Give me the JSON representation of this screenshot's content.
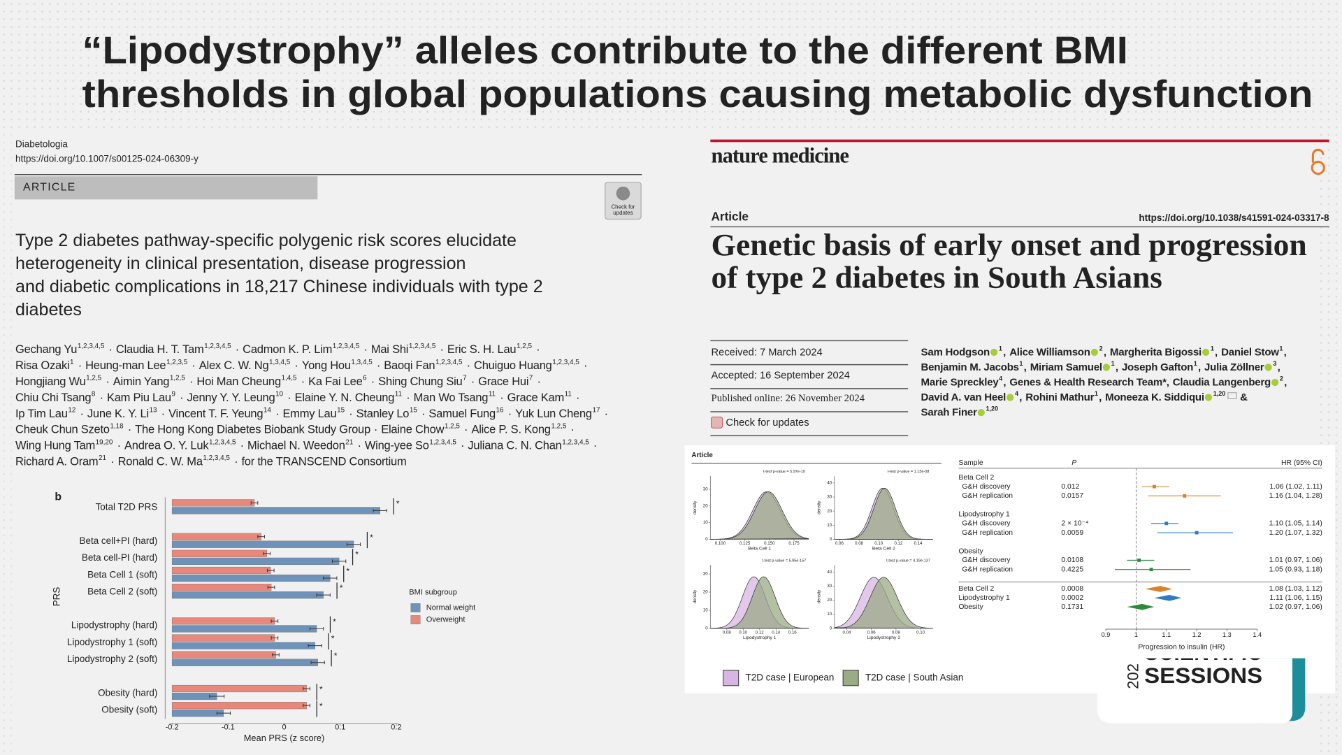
{
  "slide": {
    "title": [
      "“Lipodystrophy” alleles contribute to the different BMI",
      "thresholds in global populations causing metabolic dysfunction"
    ]
  },
  "left_paper": {
    "journal": "Diabetologia",
    "doi": "https://doi.org/10.1007/s00125-024-06309-y",
    "section": "ARTICLE",
    "badge": [
      "Check for",
      "updates"
    ],
    "title": [
      "Type 2 diabetes pathway-specific polygenic risk scores elucidate",
      "heterogeneity in clinical presentation, disease progression",
      "and diabetic complications in 18,217 Chinese individuals with type 2",
      "diabetes"
    ],
    "separator": "·",
    "authors": [
      [
        {
          "name": "Gechang Yu",
          "sup": "1,2,3,4,5"
        },
        {
          "name": "Claudia H. T. Tam",
          "sup": "1,2,3,4,5"
        },
        {
          "name": "Cadmon K. P. Lim",
          "sup": "1,2,3,4,5"
        },
        {
          "name": "Mai Shi",
          "sup": "1,2,3,4,5"
        },
        {
          "name": "Eric S. H. Lau",
          "sup": "1,2,5"
        }
      ],
      [
        {
          "name": "Risa Ozaki",
          "sup": "1"
        },
        {
          "name": "Heung-man Lee",
          "sup": "1,2,3,5"
        },
        {
          "name": "Alex C. W. Ng",
          "sup": "1,3,4,5"
        },
        {
          "name": "Yong Hou",
          "sup": "1,3,4,5"
        },
        {
          "name": "Baoqi Fan",
          "sup": "1,2,3,4,5"
        },
        {
          "name": "Chuiguo Huang",
          "sup": "1,2,3,4,5"
        }
      ],
      [
        {
          "name": "Hongjiang Wu",
          "sup": "1,2,5"
        },
        {
          "name": "Aimin Yang",
          "sup": "1,2,5"
        },
        {
          "name": "Hoi Man Cheung",
          "sup": "1,4,5"
        },
        {
          "name": "Ka Fai Lee",
          "sup": "6"
        },
        {
          "name": "Shing Chung Siu",
          "sup": "7"
        },
        {
          "name": "Grace Hui",
          "sup": "7"
        }
      ],
      [
        {
          "name": "Chiu Chi Tsang",
          "sup": "8"
        },
        {
          "name": "Kam Piu Lau",
          "sup": "9"
        },
        {
          "name": "Jenny Y. Y. Leung",
          "sup": "10"
        },
        {
          "name": "Elaine Y. N. Cheung",
          "sup": "11"
        },
        {
          "name": "Man Wo Tsang",
          "sup": "11"
        },
        {
          "name": "Grace Kam",
          "sup": "11"
        }
      ],
      [
        {
          "name": "Ip Tim Lau",
          "sup": "12"
        },
        {
          "name": "June K. Y. Li",
          "sup": "13"
        },
        {
          "name": "Vincent T. F. Yeung",
          "sup": "14"
        },
        {
          "name": "Emmy Lau",
          "sup": "15"
        },
        {
          "name": "Stanley Lo",
          "sup": "15"
        },
        {
          "name": "Samuel Fung",
          "sup": "16"
        },
        {
          "name": "Yuk Lun Cheng",
          "sup": "17"
        }
      ],
      [
        {
          "name": "Cheuk Chun Szeto",
          "sup": "1,18"
        },
        {
          "name": "The Hong Kong Diabetes Biobank Study Group"
        },
        {
          "name": "Elaine Chow",
          "sup": "1,2,5"
        },
        {
          "name": "Alice P. S. Kong",
          "sup": "1,2,5"
        }
      ],
      [
        {
          "name": "Wing Hung Tam",
          "sup": "19,20"
        },
        {
          "name": "Andrea O. Y. Luk",
          "sup": "1,2,3,4,5"
        },
        {
          "name": "Michael N. Weedon",
          "sup": "21"
        },
        {
          "name": "Wing-yee So",
          "sup": "1,2,3,4,5"
        },
        {
          "name": "Juliana C. N. Chan",
          "sup": "1,2,3,4,5"
        }
      ],
      [
        {
          "name": "Richard A. Oram",
          "sup": "21"
        },
        {
          "name": "Ronald C. W. Ma",
          "sup": "1,2,3,4,5"
        },
        {
          "name": "for the TRANSCEND Consortium"
        }
      ]
    ]
  },
  "right_paper": {
    "journal": "nature medicine",
    "section": "Article",
    "doi": "https://doi.org/10.1038/s41591-024-03317-8",
    "title": [
      "Genetic basis of early onset and progression",
      "of type 2 diabetes in South Asians"
    ],
    "dates": [
      "Received: 7 March 2024",
      "Accepted: 16 September 2024",
      "Published online: 26 November 2024",
      "Check for updates"
    ],
    "separator": ",",
    "authors": [
      [
        {
          "name": "Sam Hodgson",
          "orcid": true,
          "sup": "1"
        },
        {
          "name": "Alice Williamson",
          "orcid": true,
          "sup": "2"
        },
        {
          "name": "Margherita Bigossi",
          "orcid": true,
          "sup": "1"
        },
        {
          "name": "Daniel Stow",
          "sup": "1"
        }
      ],
      [
        {
          "name": "Benjamin M. Jacobs",
          "sup": "1"
        },
        {
          "name": "Miriam Samuel",
          "orcid": true,
          "sup": "1"
        },
        {
          "name": "Joseph Gafton",
          "sup": "1"
        },
        {
          "name": "Julia Zöllner",
          "orcid": true,
          "sup": "3"
        }
      ],
      [
        {
          "name": "Marie Spreckley",
          "sup": "4"
        },
        {
          "name": "Genes & Health Research Team*"
        },
        {
          "name": "Claudia Langenberg",
          "orcid": true,
          "sup": "2"
        }
      ],
      [
        {
          "name": "David A. van Heel",
          "orcid": true,
          "sup": "4"
        },
        {
          "name": "Rohini Mathur",
          "sup": "1"
        },
        {
          "name": "Moneeza K. Siddiqui",
          "orcid": true,
          "sup": "1,20",
          "mail": true,
          "conj": "&"
        }
      ],
      [
        {
          "name": "Sarah Finer",
          "orcid": true,
          "sup": "1,20"
        }
      ]
    ],
    "figure_label": "Article"
  },
  "chart_data": [
    {
      "type": "bar",
      "orientation": "horizontal",
      "panel_label": "b",
      "categories": [
        "Total T2D PRS",
        null,
        "Beta cell+PI (hard)",
        "Beta cell-PI (hard)",
        "Beta Cell 1 (soft)",
        "Beta Cell 2 (soft)",
        null,
        "Lipodystrophy (hard)",
        "Lipodystrophy 1 (soft)",
        "Lipodystrophy 2 (soft)",
        null,
        "Obesity (hard)",
        "Obesity (soft)"
      ],
      "series": [
        {
          "name": "Normal weight",
          "color": "#6f93b8",
          "values": [
            0.171,
            null,
            0.124,
            0.098,
            0.082,
            0.07,
            null,
            0.058,
            0.055,
            0.06,
            null,
            -0.12,
            -0.108
          ],
          "errors": [
            0.012,
            null,
            0.012,
            0.012,
            0.012,
            0.012,
            null,
            0.012,
            0.012,
            0.012,
            null,
            0.013,
            0.012
          ]
        },
        {
          "name": "Overweight",
          "color": "#e8877b",
          "values": [
            -0.053,
            null,
            -0.041,
            -0.031,
            -0.024,
            -0.023,
            null,
            -0.017,
            -0.017,
            -0.015,
            null,
            0.04,
            0.04
          ],
          "errors": [
            0.006,
            null,
            0.006,
            0.006,
            0.006,
            0.006,
            null,
            0.006,
            0.006,
            0.006,
            null,
            0.006,
            0.006
          ]
        }
      ],
      "significance": [
        "*",
        null,
        "*",
        "*",
        "*",
        "*",
        null,
        "*",
        "*",
        "*",
        null,
        "*",
        "*"
      ],
      "xlim": [
        -0.2,
        0.2
      ],
      "xticks": [
        -0.2,
        -0.1,
        0,
        0.1,
        0.2
      ],
      "xlabel": "Mean PRS (z score)",
      "ylabel": "PRS",
      "legend_title": "BMI subgroup"
    },
    {
      "type": "density",
      "series": [
        {
          "name": "T2D case | European",
          "color": "#d8b6e2"
        },
        {
          "name": "T2D case | South Asian",
          "color": "#9aab85"
        }
      ],
      "panels": [
        {
          "title": "t-test p-value = 5.97e-10",
          "xlabel": "Beta Cell 1",
          "ylabel": "density",
          "xlim": [
            0.09,
            0.19
          ],
          "xticks": [
            {
              "value": 0.1,
              "label": "0.100"
            },
            0.125,
            {
              "value": 0.15,
              "label": "0.150"
            },
            0.175
          ],
          "ylim": [
            0,
            38
          ],
          "yticks": [
            0,
            10,
            20,
            30
          ],
          "mean": [
            0.147,
            0.149
          ],
          "sd": [
            0.014,
            0.014
          ]
        },
        {
          "title": "t-test p-value = 1.13e-08",
          "xlabel": "Beta Cell 2",
          "ylabel": "density",
          "xlim": [
            0.055,
            0.155
          ],
          "xticks": [
            0.06,
            0.08,
            {
              "value": 0.1,
              "label": "0.10"
            },
            0.12,
            0.14
          ],
          "ylim": [
            0,
            45
          ],
          "yticks": [
            0,
            10,
            20,
            30,
            40
          ],
          "mean": [
            0.104,
            0.106
          ],
          "sd": [
            0.011,
            0.011
          ]
        },
        {
          "title": "t-test p-value = 5.95e-157",
          "xlabel": "Lipodystrophy 1",
          "ylabel": "density",
          "xlim": [
            0.06,
            0.18
          ],
          "xticks": [
            0.08,
            {
              "value": 0.1,
              "label": "0.10"
            },
            0.12,
            0.14,
            0.16
          ],
          "ylim": [
            0,
            35
          ],
          "yticks": [
            0,
            10,
            20,
            30
          ],
          "mean": [
            0.113,
            0.125
          ],
          "sd": [
            0.014,
            0.014
          ]
        },
        {
          "title": "t-test p-value = 4.19e-137",
          "xlabel": "Lipodystrophy 2",
          "ylabel": "density",
          "xlim": [
            0.03,
            0.11
          ],
          "xticks": [
            0.04,
            0.06,
            0.08,
            {
              "value": 0.1,
              "label": "0.10"
            }
          ],
          "ylim": [
            0,
            45
          ],
          "yticks": [
            0,
            10,
            20,
            30,
            40
          ],
          "mean": [
            0.062,
            0.07
          ],
          "sd": [
            0.011,
            0.011
          ]
        }
      ]
    },
    {
      "type": "forest",
      "headers": {
        "sample": "Sample",
        "p": "P",
        "hr": "HR (95% CI)"
      },
      "groups": [
        {
          "name": "Beta Cell 2",
          "color": "#d9822b",
          "rows": [
            {
              "name": "G&H discovery",
              "p": 0.012,
              "hr": 1.06,
              "lower": 1.02,
              "upper": 1.11,
              "hr_label": "1.06 (1.02, 1.11)"
            },
            {
              "name": "G&H replication",
              "p": 0.0157,
              "hr": 1.16,
              "lower": 1.04,
              "upper": 1.28,
              "hr_label": "1.16 (1.04, 1.28)"
            }
          ]
        },
        {
          "name": "Lipodystrophy 1",
          "color": "#2d7cc1",
          "rows": [
            {
              "name": "G&H discovery",
              "p": {
                "value": 0.0002,
                "label": "2 × 10⁻⁴"
              },
              "hr": 1.1,
              "lower": 1.05,
              "upper": 1.14,
              "hr_label": "1.10 (1.05, 1.14)"
            },
            {
              "name": "G&H replication",
              "p": 0.0059,
              "hr": 1.2,
              "lower": 1.07,
              "upper": 1.32,
              "hr_label": "1.20 (1.07, 1.32)"
            }
          ]
        },
        {
          "name": "Obesity",
          "color": "#2e8b3e",
          "rows": [
            {
              "name": "G&H discovery",
              "p": 0.0108,
              "hr": 1.01,
              "lower": 0.97,
              "upper": 1.06,
              "hr_label": "1.01 (0.97, 1.06)"
            },
            {
              "name": "G&H replication",
              "p": 0.4225,
              "hr": 1.05,
              "lower": 0.93,
              "upper": 1.18,
              "hr_label": "1.05 (0.93, 1.18)"
            }
          ]
        }
      ],
      "pooled": [
        {
          "name": "Beta Cell 2",
          "p": 0.0008,
          "hr": 1.08,
          "lower": 1.03,
          "upper": 1.12,
          "hr_label": "1.08 (1.03, 1.12)"
        },
        {
          "name": "Lipodystrophy 1",
          "p": 0.0002,
          "hr": 1.11,
          "lower": 1.06,
          "upper": 1.15,
          "hr_label": "1.11 (1.06, 1.15)"
        },
        {
          "name": "Obesity",
          "p": 0.1731,
          "hr": 1.02,
          "lower": 0.97,
          "upper": 1.06,
          "hr_label": "1.02 (0.97, 1.06)"
        }
      ],
      "xlim": [
        0.9,
        1.4
      ],
      "xticks": [
        0.9,
        1,
        1.1,
        1.2,
        1.3,
        1.4
      ],
      "xlabel": "Progression to insulin (HR)"
    }
  ],
  "logo": {
    "year": "202",
    "line1": "SCIENTIFIC",
    "line2": "SESSIONS"
  }
}
